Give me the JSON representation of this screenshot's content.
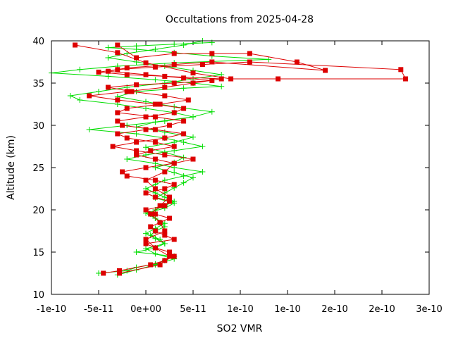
{
  "chart_data": {
    "type": "scatter",
    "title": "Occultations from 2025-04-28",
    "xlabel": "SO2 VMR",
    "ylabel": "Altitude (km)",
    "xlim": [
      -1e-10,
      3e-10
    ],
    "ylim": [
      10,
      40
    ],
    "x_ticks": [
      -1e-10,
      -5e-11,
      0,
      5e-11,
      1e-10,
      1.5e-10,
      2e-10,
      2.5e-10,
      3e-10
    ],
    "x_tick_labels": [
      "-1e-10",
      "-5e-11",
      "0e+00",
      "5e-11",
      "1e-10",
      "1e-10",
      "2e-10",
      "2e-10",
      "3e-10"
    ],
    "y_ticks": [
      10,
      15,
      20,
      25,
      30,
      35,
      40
    ],
    "y_tick_labels": [
      "10",
      "15",
      "20",
      "25",
      "30",
      "35",
      "40"
    ],
    "grid": false,
    "legend": "none",
    "series": [
      {
        "color": "#00dd00",
        "marker": "plus",
        "x": [
          -5e-11,
          -2e-11,
          -1e-11,
          1e-11,
          2e-11,
          3e-11,
          -1e-11,
          1e-11,
          2e-11,
          1.5e-11,
          5e-12,
          1e-11,
          2e-11,
          1.5e-11,
          1e-11,
          5e-12,
          1e-11,
          2e-11,
          3e-11,
          2e-11,
          1e-11,
          0,
          1e-11,
          2e-11,
          4e-11,
          6e-11,
          3e-11,
          1e-11,
          -2e-11,
          0,
          3e-11,
          6e-11,
          4e-11,
          2e-11,
          -1e-11,
          -6e-11,
          -2e-11,
          2e-11,
          5e-11,
          3e-11,
          0,
          -3e-11,
          -7e-11,
          -8e-11,
          -5e-11,
          -2e-11,
          2e-11,
          5e-11,
          8e-11,
          5e-11,
          2e-11,
          -1e-11,
          -4e-11,
          -2e-11,
          1e-11,
          4e-11,
          6e-11
        ],
        "y": [
          12.5,
          12.8,
          13.2,
          13.6,
          14.0,
          14.5,
          15.0,
          15.5,
          16.0,
          16.5,
          17.0,
          17.5,
          18.0,
          18.5,
          19.0,
          19.5,
          20.0,
          20.5,
          21.0,
          21.5,
          22.0,
          22.5,
          23.0,
          23.5,
          24.0,
          24.5,
          25.0,
          25.5,
          26.0,
          26.5,
          27.0,
          27.5,
          28.0,
          28.5,
          29.0,
          29.5,
          30.0,
          30.5,
          31.0,
          31.5,
          32.0,
          32.5,
          33.0,
          33.5,
          34.0,
          34.5,
          35.0,
          35.5,
          36.0,
          36.5,
          37.0,
          37.5,
          38.0,
          38.5,
          39.0,
          39.5,
          40.0
        ]
      },
      {
        "color": "#00dd00",
        "marker": "plus",
        "x": [
          -3e-11,
          -1e-11,
          1e-11,
          3e-11,
          1e-11,
          0,
          2e-11,
          1e-11,
          0,
          1e-11,
          2e-11,
          1e-11,
          0,
          2e-11,
          3e-11,
          1e-11,
          2e-11,
          3e-11,
          4e-11,
          5e-11,
          3e-11,
          1e-11,
          3e-11,
          4e-11,
          2e-11,
          0,
          3e-11,
          5e-11,
          2e-11,
          -1e-11,
          1e-11,
          5e-11,
          7e-11,
          3e-11,
          0,
          -3e-11,
          -1e-11,
          4e-11,
          8e-11,
          5e-11,
          1e-11,
          -4e-11,
          -1e-10,
          -7e-11,
          -3e-11,
          3e-11,
          1.3e-10,
          7e-11,
          3e-11,
          -1e-11,
          -4e-11,
          -1e-11,
          3e-11,
          7e-11
        ],
        "y": [
          12.3,
          12.9,
          13.5,
          14.2,
          14.8,
          15.4,
          16.0,
          16.6,
          17.2,
          17.8,
          18.4,
          19.0,
          19.6,
          20.2,
          20.8,
          21.4,
          22.0,
          22.6,
          23.2,
          23.8,
          24.4,
          25.0,
          25.6,
          26.2,
          26.8,
          27.4,
          28.0,
          28.6,
          29.2,
          29.8,
          30.4,
          31.0,
          31.6,
          32.2,
          32.8,
          33.4,
          34.0,
          34.4,
          34.6,
          35.0,
          35.4,
          35.8,
          36.2,
          36.6,
          37.0,
          37.4,
          37.8,
          38.2,
          38.6,
          39.0,
          39.2,
          39.4,
          39.6,
          39.8
        ]
      },
      {
        "color": "#dd0000",
        "marker": "square",
        "x": [
          -4.5e-11,
          -2.8e-11,
          5e-12,
          2e-11,
          3e-11,
          2.5e-11,
          1e-11,
          0,
          3e-11,
          2e-11,
          1e-11,
          5e-12,
          1.5e-11,
          2.5e-11,
          1e-11,
          0,
          2e-11,
          2.5e-11,
          1e-11,
          0,
          2e-11,
          3e-11,
          1e-11,
          -2e-11,
          -2.5e-11,
          0,
          3e-11,
          5e-11,
          2e-11,
          -1e-11,
          -3.5e-11,
          -1e-11,
          2e-11,
          4e-11,
          1e-11,
          -2.5e-11,
          -3e-11,
          0,
          3e-11,
          4e-11,
          1e-11,
          -3e-11,
          -6e-11,
          -2e-11,
          2e-11,
          5e-11,
          8e-11,
          2e-11,
          -2e-11,
          -5e-11,
          -3e-11,
          1e-11,
          6e-11,
          1.1e-10,
          2.7e-10,
          2.75e-10,
          1.4e-10,
          9e-11,
          5e-11,
          0,
          -3e-11,
          -7.5e-11
        ],
        "y": [
          12.5,
          12.8,
          13.5,
          14.0,
          14.5,
          15.0,
          15.5,
          16.0,
          16.5,
          17.0,
          17.5,
          18.0,
          18.5,
          19.0,
          19.5,
          20.0,
          20.5,
          21.0,
          21.5,
          22.0,
          22.5,
          23.0,
          23.5,
          24.0,
          24.5,
          25.0,
          25.5,
          26.0,
          26.5,
          27.0,
          27.5,
          28.0,
          28.5,
          29.0,
          29.5,
          30.0,
          30.5,
          31.0,
          31.5,
          32.0,
          32.5,
          33.0,
          33.5,
          34.0,
          34.5,
          35.0,
          35.5,
          35.8,
          36.0,
          36.3,
          36.6,
          36.9,
          37.2,
          37.5,
          36.6,
          35.5,
          35.5,
          35.5,
          36.2,
          37.4,
          38.6,
          39.5
        ]
      },
      {
        "color": "#dd0000",
        "marker": "square",
        "x": [
          -2.8e-11,
          1.5e-11,
          2.5e-11,
          1e-11,
          0,
          2e-11,
          1.5e-11,
          5e-12,
          1.5e-11,
          2.5e-11,
          1e-11,
          0,
          2e-11,
          3e-11,
          1e-11,
          -1e-11,
          5e-12,
          3e-11,
          1e-11,
          -2e-11,
          -3e-11,
          0,
          2.5e-11,
          4e-11,
          1e-11,
          -3e-11,
          -2e-11,
          1.5e-11,
          4.5e-11,
          2e-11,
          -1.5e-11,
          -4e-11,
          -1e-11,
          3e-11,
          7e-11,
          4e-11,
          0,
          -4e-11,
          -2e-11,
          3e-11,
          7e-11,
          1.9e-10,
          1.6e-10,
          1.1e-10,
          7e-11,
          3e-11,
          -1e-11,
          -3e-11
        ],
        "y": [
          12.5,
          13.5,
          14.5,
          15.5,
          16.5,
          17.5,
          18.5,
          19.5,
          20.5,
          21.5,
          22.5,
          23.5,
          24.5,
          25.5,
          26.0,
          26.5,
          27.0,
          27.5,
          28.0,
          28.5,
          29.0,
          29.5,
          30.0,
          30.5,
          31.0,
          31.5,
          32.0,
          32.5,
          33.0,
          33.5,
          34.0,
          34.5,
          34.8,
          35.0,
          35.3,
          35.6,
          36.0,
          36.4,
          36.8,
          37.2,
          37.5,
          36.5,
          37.5,
          38.5,
          38.5,
          38.5,
          38.0,
          39.5
        ]
      }
    ]
  }
}
